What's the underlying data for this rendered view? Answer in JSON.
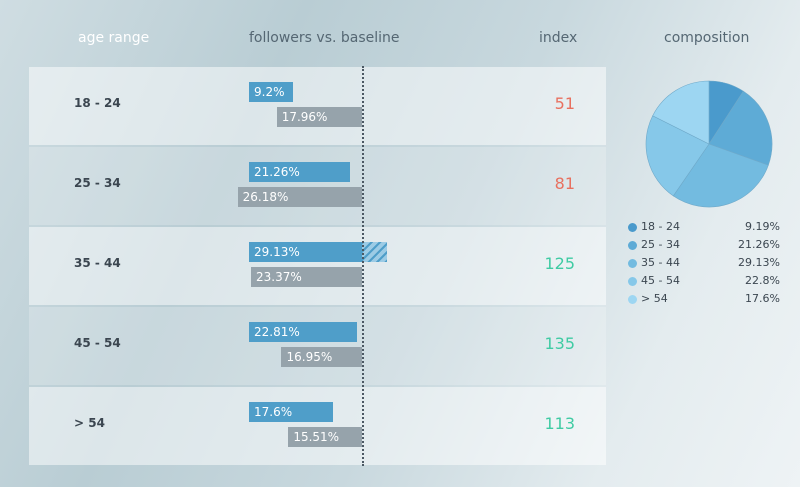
{
  "headers": {
    "age_range": "age range",
    "followers_vs_baseline": "followers vs. baseline",
    "index": "index",
    "composition": "composition"
  },
  "colors": {
    "followers_bar": "#4f9ec9",
    "baseline_bar": "#96a3ab",
    "index_above": "#3fcba3",
    "index_below": "#e8705f"
  },
  "chart_data": {
    "type": "bar",
    "categories": [
      "18 - 24",
      "25 - 34",
      "35 - 44",
      "45 - 54",
      "> 54"
    ],
    "series": [
      {
        "values": [
          9.2,
          21.26,
          29.13,
          22.81,
          17.6
        ],
        "labels": [
          "9.2%",
          "21.26%",
          "29.13%",
          "22.81%",
          "17.6%"
        ]
      },
      {
        "values": [
          17.96,
          26.18,
          23.37,
          16.95,
          15.51
        ],
        "labels": [
          "17.96%",
          "26.18%",
          "23.37%",
          "16.95%",
          "15.51%"
        ]
      }
    ],
    "index": [
      "51",
      "81",
      "125",
      "135",
      "113"
    ],
    "composition": {
      "type": "pie",
      "labels": [
        "18 - 24",
        "25 - 34",
        "35 - 44",
        "45 - 54",
        "> 54"
      ],
      "values": [
        9.19,
        21.26,
        29.13,
        22.8,
        17.6
      ],
      "value_labels": [
        "9.19%",
        "21.26%",
        "29.13%",
        "22.8%",
        "17.6%"
      ],
      "colors": [
        "#4a9acc",
        "#5eabd6",
        "#73bbe0",
        "#86c8e9",
        "#9dd6f2"
      ]
    }
  }
}
